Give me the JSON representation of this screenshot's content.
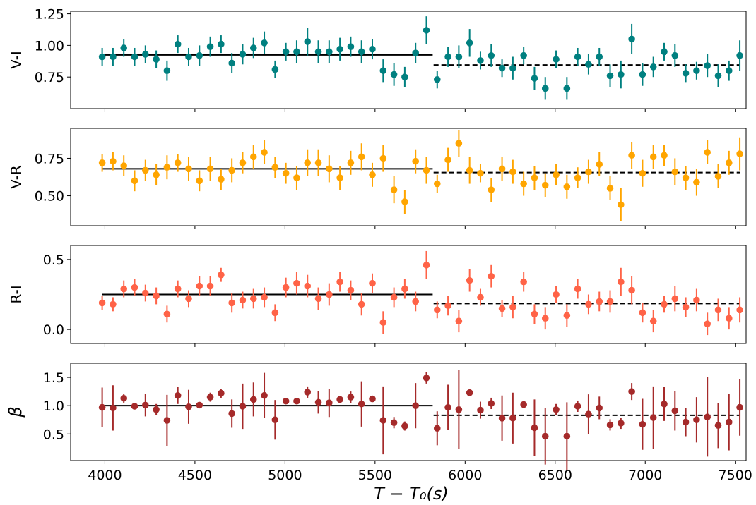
{
  "figure": {
    "xlabel": "T − T₀(s)",
    "x_ticks": [
      4000,
      4500,
      5000,
      5500,
      6000,
      6500,
      7000,
      7500
    ]
  },
  "chart_data": [
    {
      "type": "scatter",
      "ylabel": "V-I",
      "color": "#008080",
      "xlim": [
        3810,
        7560
      ],
      "ylim": [
        0.5,
        1.27
      ],
      "yticks": [
        0.75,
        1.0,
        1.25
      ],
      "ytick_labels": [
        "0.75",
        "1.00",
        "1.25"
      ],
      "x": [
        3985,
        4045,
        4105,
        4165,
        4225,
        4285,
        4345,
        4405,
        4465,
        4525,
        4585,
        4645,
        4705,
        4765,
        4825,
        4885,
        4945,
        5005,
        5065,
        5125,
        5185,
        5245,
        5305,
        5365,
        5425,
        5485,
        5545,
        5605,
        5665,
        5725,
        5785,
        5845,
        5905,
        5965,
        6025,
        6085,
        6145,
        6205,
        6265,
        6325,
        6385,
        6445,
        6505,
        6565,
        6625,
        6685,
        6745,
        6805,
        6865,
        6925,
        6985,
        7045,
        7105,
        7165,
        7225,
        7285,
        7345,
        7405,
        7465,
        7525
      ],
      "y": [
        0.91,
        0.91,
        0.98,
        0.91,
        0.93,
        0.89,
        0.8,
        1.01,
        0.91,
        0.92,
        0.99,
        1.01,
        0.86,
        0.93,
        0.98,
        1.02,
        0.81,
        0.95,
        0.95,
        1.03,
        0.95,
        0.95,
        0.97,
        0.99,
        0.95,
        0.97,
        0.8,
        0.77,
        0.75,
        0.94,
        1.12,
        0.73,
        0.91,
        0.91,
        1.02,
        0.88,
        0.92,
        0.82,
        0.82,
        0.92,
        0.74,
        0.66,
        0.89,
        0.66,
        0.91,
        0.85,
        0.91,
        0.76,
        0.77,
        1.05,
        0.77,
        0.83,
        0.95,
        0.92,
        0.78,
        0.8,
        0.84,
        0.76,
        0.8,
        0.92
      ],
      "err": [
        0.07,
        0.07,
        0.07,
        0.07,
        0.07,
        0.07,
        0.08,
        0.07,
        0.07,
        0.08,
        0.08,
        0.07,
        0.08,
        0.08,
        0.08,
        0.09,
        0.07,
        0.07,
        0.09,
        0.11,
        0.09,
        0.09,
        0.09,
        0.08,
        0.09,
        0.08,
        0.09,
        0.09,
        0.08,
        0.08,
        0.11,
        0.07,
        0.08,
        0.09,
        0.11,
        0.07,
        0.09,
        0.07,
        0.09,
        0.07,
        0.09,
        0.09,
        0.07,
        0.09,
        0.07,
        0.08,
        0.07,
        0.09,
        0.11,
        0.12,
        0.09,
        0.08,
        0.07,
        0.09,
        0.07,
        0.07,
        0.09,
        0.09,
        0.08,
        0.12
      ],
      "fits": [
        {
          "x0": 3985,
          "x1": 5820,
          "y": 0.925,
          "style": "solid"
        },
        {
          "x0": 5825,
          "x1": 7525,
          "y": 0.845,
          "style": "dashed"
        }
      ]
    },
    {
      "type": "scatter",
      "ylabel": "V-R",
      "color": "#FFA500",
      "xlim": [
        3810,
        7560
      ],
      "ylim": [
        0.3,
        0.95
      ],
      "yticks": [
        0.5,
        0.75
      ],
      "ytick_labels": [
        "0.50",
        "0.75"
      ],
      "x": [
        3985,
        4045,
        4105,
        4165,
        4225,
        4285,
        4345,
        4405,
        4465,
        4525,
        4585,
        4645,
        4705,
        4765,
        4825,
        4885,
        4945,
        5005,
        5065,
        5125,
        5185,
        5245,
        5305,
        5365,
        5425,
        5485,
        5545,
        5605,
        5665,
        5725,
        5785,
        5845,
        5905,
        5965,
        6025,
        6085,
        6145,
        6205,
        6265,
        6325,
        6385,
        6445,
        6505,
        6565,
        6625,
        6685,
        6745,
        6805,
        6865,
        6925,
        6985,
        7045,
        7105,
        7165,
        7225,
        7285,
        7345,
        7405,
        7465,
        7525
      ],
      "y": [
        0.72,
        0.73,
        0.7,
        0.6,
        0.67,
        0.64,
        0.69,
        0.72,
        0.68,
        0.6,
        0.68,
        0.61,
        0.67,
        0.72,
        0.76,
        0.79,
        0.69,
        0.65,
        0.62,
        0.72,
        0.72,
        0.68,
        0.62,
        0.72,
        0.76,
        0.64,
        0.75,
        0.54,
        0.46,
        0.73,
        0.67,
        0.58,
        0.74,
        0.85,
        0.67,
        0.65,
        0.54,
        0.68,
        0.66,
        0.58,
        0.62,
        0.57,
        0.64,
        0.56,
        0.62,
        0.66,
        0.71,
        0.55,
        0.44,
        0.77,
        0.65,
        0.76,
        0.77,
        0.66,
        0.62,
        0.59,
        0.79,
        0.63,
        0.72,
        0.78
      ],
      "err": [
        0.06,
        0.06,
        0.07,
        0.07,
        0.07,
        0.07,
        0.08,
        0.06,
        0.08,
        0.07,
        0.08,
        0.07,
        0.08,
        0.07,
        0.08,
        0.08,
        0.07,
        0.07,
        0.08,
        0.09,
        0.09,
        0.09,
        0.08,
        0.08,
        0.09,
        0.08,
        0.09,
        0.09,
        0.08,
        0.08,
        0.09,
        0.06,
        0.08,
        0.09,
        0.09,
        0.06,
        0.08,
        0.08,
        0.08,
        0.08,
        0.08,
        0.08,
        0.07,
        0.08,
        0.07,
        0.08,
        0.08,
        0.08,
        0.11,
        0.09,
        0.09,
        0.08,
        0.07,
        0.09,
        0.08,
        0.09,
        0.08,
        0.08,
        0.08,
        0.11
      ],
      "fits": [
        {
          "x0": 3985,
          "x1": 5820,
          "y": 0.68,
          "style": "solid"
        },
        {
          "x0": 5825,
          "x1": 7525,
          "y": 0.655,
          "style": "dashed"
        }
      ]
    },
    {
      "type": "scatter",
      "ylabel": "R-I",
      "color": "#FF6347",
      "xlim": [
        3810,
        7560
      ],
      "ylim": [
        -0.1,
        0.6
      ],
      "yticks": [
        0.0,
        0.5
      ],
      "ytick_labels": [
        "0.0",
        "0.5"
      ],
      "x": [
        3985,
        4045,
        4105,
        4165,
        4225,
        4285,
        4345,
        4405,
        4465,
        4525,
        4585,
        4645,
        4705,
        4765,
        4825,
        4885,
        4945,
        5005,
        5065,
        5125,
        5185,
        5245,
        5305,
        5365,
        5425,
        5485,
        5545,
        5605,
        5665,
        5725,
        5785,
        5845,
        5905,
        5965,
        6025,
        6085,
        6145,
        6205,
        6265,
        6325,
        6385,
        6445,
        6505,
        6565,
        6625,
        6685,
        6745,
        6805,
        6865,
        6925,
        6985,
        7045,
        7105,
        7165,
        7225,
        7285,
        7345,
        7405,
        7465,
        7525
      ],
      "y": [
        0.19,
        0.18,
        0.29,
        0.3,
        0.26,
        0.24,
        0.11,
        0.29,
        0.22,
        0.31,
        0.31,
        0.39,
        0.19,
        0.21,
        0.22,
        0.23,
        0.12,
        0.3,
        0.33,
        0.31,
        0.22,
        0.25,
        0.34,
        0.28,
        0.18,
        0.33,
        0.05,
        0.23,
        0.29,
        0.2,
        0.46,
        0.14,
        0.17,
        0.06,
        0.35,
        0.23,
        0.38,
        0.15,
        0.16,
        0.34,
        0.11,
        0.08,
        0.25,
        0.1,
        0.29,
        0.18,
        0.2,
        0.2,
        0.34,
        0.28,
        0.12,
        0.06,
        0.18,
        0.22,
        0.16,
        0.21,
        0.04,
        0.14,
        0.08,
        0.14
      ],
      "err": [
        0.05,
        0.05,
        0.06,
        0.06,
        0.06,
        0.06,
        0.06,
        0.06,
        0.06,
        0.07,
        0.07,
        0.05,
        0.07,
        0.06,
        0.07,
        0.07,
        0.06,
        0.07,
        0.08,
        0.08,
        0.08,
        0.08,
        0.07,
        0.07,
        0.08,
        0.07,
        0.08,
        0.07,
        0.07,
        0.07,
        0.1,
        0.06,
        0.07,
        0.08,
        0.08,
        0.06,
        0.08,
        0.06,
        0.08,
        0.07,
        0.07,
        0.08,
        0.06,
        0.08,
        0.07,
        0.07,
        0.07,
        0.08,
        0.1,
        0.1,
        0.07,
        0.08,
        0.06,
        0.09,
        0.07,
        0.08,
        0.08,
        0.08,
        0.08,
        0.09
      ],
      "fits": [
        {
          "x0": 3985,
          "x1": 5820,
          "y": 0.25,
          "style": "solid"
        },
        {
          "x0": 5825,
          "x1": 7525,
          "y": 0.185,
          "style": "dashed"
        }
      ]
    },
    {
      "type": "scatter",
      "ylabel": "β",
      "color": "#A52A2A",
      "xlim": [
        3810,
        7560
      ],
      "ylim": [
        0.03,
        1.75
      ],
      "yticks": [
        0.5,
        1.0,
        1.5
      ],
      "ytick_labels": [
        "0.5",
        "1.0",
        "1.5"
      ],
      "x": [
        3985,
        4045,
        4105,
        4165,
        4225,
        4285,
        4345,
        4405,
        4465,
        4525,
        4585,
        4645,
        4705,
        4765,
        4825,
        4885,
        4945,
        5005,
        5065,
        5125,
        5185,
        5245,
        5305,
        5365,
        5425,
        5485,
        5545,
        5605,
        5665,
        5725,
        5785,
        5845,
        5905,
        5965,
        6025,
        6085,
        6145,
        6205,
        6265,
        6325,
        6385,
        6445,
        6505,
        6565,
        6625,
        6685,
        6745,
        6805,
        6865,
        6925,
        6985,
        7045,
        7105,
        7165,
        7225,
        7285,
        7345,
        7405,
        7465,
        7525
      ],
      "y": [
        0.97,
        0.96,
        1.13,
        0.99,
        1.01,
        0.93,
        0.74,
        1.18,
        0.98,
        1.01,
        1.15,
        1.22,
        0.86,
        0.99,
        1.11,
        1.18,
        0.75,
        1.08,
        1.08,
        1.24,
        1.06,
        1.05,
        1.11,
        1.15,
        1.03,
        1.12,
        0.74,
        0.7,
        0.64,
        1.0,
        1.49,
        0.6,
        0.97,
        0.93,
        1.23,
        0.92,
        1.04,
        0.78,
        0.78,
        1.02,
        0.61,
        0.46,
        0.93,
        0.46,
        0.99,
        0.85,
        0.96,
        0.66,
        0.69,
        1.25,
        0.67,
        0.79,
        1.03,
        0.91,
        0.71,
        0.75,
        0.8,
        0.65,
        0.71,
        0.97
      ],
      "err": [
        0.35,
        0.4,
        0.08,
        0.05,
        0.2,
        0.1,
        0.45,
        0.15,
        0.3,
        0.05,
        0.08,
        0.08,
        0.25,
        0.4,
        0.3,
        0.4,
        0.35,
        0.05,
        0.05,
        0.1,
        0.2,
        0.25,
        0.05,
        0.1,
        0.4,
        0.05,
        0.6,
        0.1,
        0.08,
        0.4,
        0.1,
        0.3,
        0.4,
        0.7,
        0.05,
        0.15,
        0.1,
        0.4,
        0.45,
        0.05,
        0.5,
        0.5,
        0.1,
        0.6,
        0.1,
        0.35,
        0.2,
        0.1,
        0.1,
        0.15,
        0.45,
        0.55,
        0.3,
        0.35,
        0.25,
        0.4,
        0.7,
        0.4,
        0.5,
        0.5
      ],
      "fits": [
        {
          "x0": 3985,
          "x1": 5820,
          "y": 1.0,
          "style": "solid"
        },
        {
          "x0": 5825,
          "x1": 7525,
          "y": 0.83,
          "style": "dashed"
        }
      ]
    }
  ]
}
